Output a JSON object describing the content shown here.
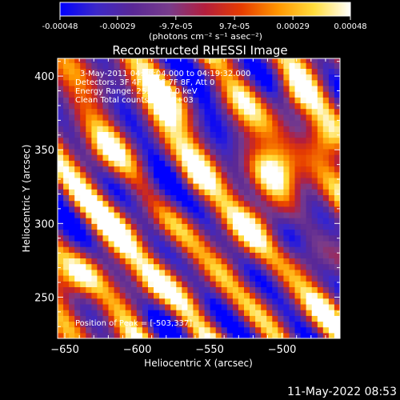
{
  "colorbar": {
    "tick_labels": [
      "-0.00048",
      "-0.00029",
      "-9.7e-05",
      "9.7e-05",
      "0.00029",
      "0.00048"
    ],
    "tick_values": [
      -0.00048,
      -0.00029,
      -9.7e-05,
      9.7e-05,
      0.00029,
      0.00048
    ],
    "range": [
      -0.00048,
      0.00048
    ],
    "units_label": "(photons cm⁻² s⁻¹ asec⁻²)",
    "colors": [
      "#0000ff",
      "#3c28c8",
      "#5a2896",
      "#783c8c",
      "#b41e3c",
      "#e63c00",
      "#ff9600",
      "#ffdc3c",
      "#ffffff"
    ]
  },
  "chart_data": {
    "type": "heatmap",
    "title": "Reconstructed RHESSI Image",
    "xlabel": "Heliocentric X (arcsec)",
    "ylabel": "Heliocentric Y (arcsec)",
    "xlim": [
      -655,
      -460
    ],
    "ylim": [
      222,
      412
    ],
    "x_ticks": [
      -650,
      -600,
      -550,
      -500
    ],
    "y_ticks": [
      250,
      300,
      350,
      400
    ],
    "annotation_lines": [
      "3-May-2011 04:18:04.000 to 04:19:32.000",
      "Detectors: 3F 4F 5F 6F 7F 8F, Att 0",
      "Energy Range: 25.0 - 50.0 keV",
      "Clean     Total counts: 1.67E+03"
    ],
    "peak_label": "Position of Peak = [-503,337]",
    "peak": [
      -503,
      337
    ],
    "hotspots": [
      {
        "x": -503,
        "y": 337,
        "amp": 0.00048,
        "sigma": 12
      },
      {
        "x": -490,
        "y": 390,
        "amp": 0.00042,
        "sigma": 11
      },
      {
        "x": -520,
        "y": 300,
        "amp": 0.00035,
        "sigma": 13
      },
      {
        "x": -640,
        "y": 265,
        "amp": 0.0004,
        "sigma": 11
      },
      {
        "x": -610,
        "y": 295,
        "amp": 0.00036,
        "sigma": 14
      },
      {
        "x": -625,
        "y": 345,
        "amp": 0.00033,
        "sigma": 12
      },
      {
        "x": -580,
        "y": 380,
        "amp": 0.0003,
        "sigma": 12
      },
      {
        "x": -560,
        "y": 330,
        "amp": 0.00028,
        "sigma": 10
      },
      {
        "x": -590,
        "y": 255,
        "amp": 0.00031,
        "sigma": 12
      },
      {
        "x": -470,
        "y": 355,
        "amp": 0.0003,
        "sigma": 10
      },
      {
        "x": -540,
        "y": 270,
        "amp": 0.0002,
        "sigma": 10
      },
      {
        "x": -470,
        "y": 245,
        "amp": 0.00018,
        "sigma": 9
      }
    ],
    "coldspots": [
      {
        "x": -590,
        "y": 320,
        "amp": -0.0003,
        "sigma": 14
      },
      {
        "x": -495,
        "y": 290,
        "amp": -0.00032,
        "sigma": 12
      },
      {
        "x": -540,
        "y": 400,
        "amp": -0.00025,
        "sigma": 10
      },
      {
        "x": -550,
        "y": 240,
        "amp": -0.0002,
        "sigma": 10
      }
    ]
  },
  "timestamp": "11-May-2022 08:53"
}
